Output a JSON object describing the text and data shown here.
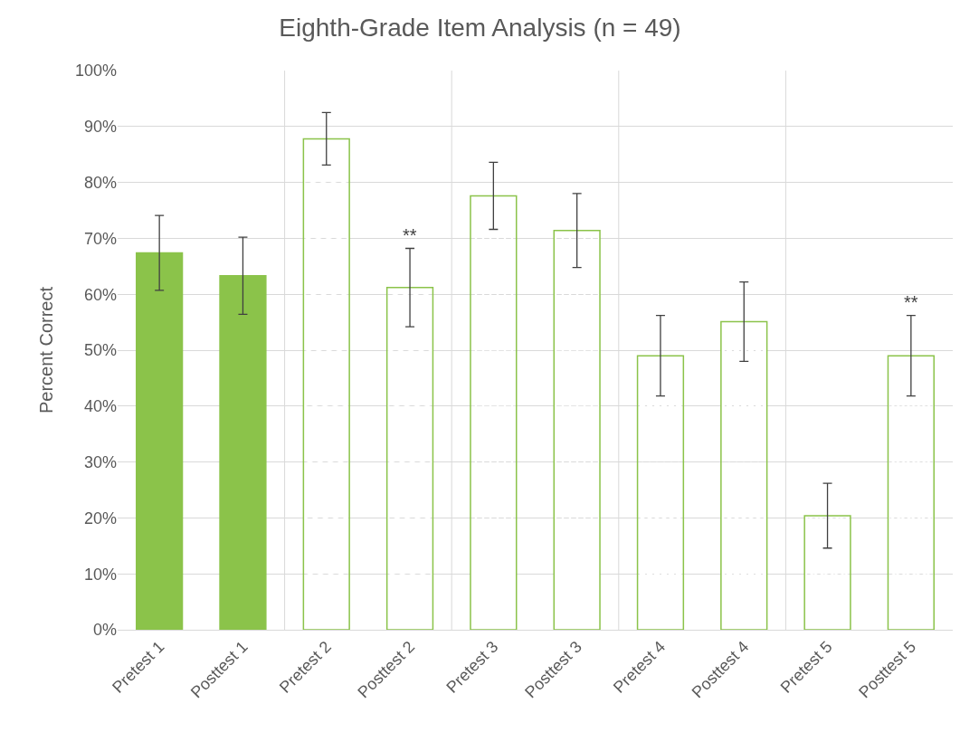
{
  "chart_data": {
    "type": "bar",
    "title": "Eighth-Grade Item Analysis (n = 49)",
    "ylabel": "Percent Correct",
    "categories": [
      "Pretest 1",
      "Posttest 1",
      "Pretest 2",
      "Posttest 2",
      "Pretest 3",
      "Posttest 3",
      "Pretest 4",
      "Posttest 4",
      "Pretest 5",
      "Posttest 5"
    ],
    "values": [
      67.4,
      63.3,
      87.8,
      61.2,
      77.6,
      71.4,
      49.0,
      55.1,
      20.4,
      49.0
    ],
    "errors": [
      6.7,
      6.9,
      4.7,
      7.0,
      6.0,
      6.6,
      7.2,
      7.1,
      5.8,
      7.2
    ],
    "colors": [
      "#8bc34a",
      "#8bc34a",
      "#8bc34a",
      "#8bc34a",
      "#8bc34a",
      "#8bc34a",
      "#8bc34a",
      "#8bc34a",
      "#8bc34a",
      "#8bc34a"
    ],
    "annotations": [
      {
        "text": "**",
        "x": "Posttest 2",
        "y": 61.2
      },
      {
        "text": "**",
        "x": "Posttest 5",
        "y": 49.0
      }
    ],
    "ylim": [
      0,
      100
    ],
    "yticks": [
      {
        "value": 0,
        "label": "0%"
      },
      {
        "value": 10,
        "label": "10%"
      },
      {
        "value": 20,
        "label": "20%"
      },
      {
        "value": 30,
        "label": "30%"
      },
      {
        "value": 40,
        "label": "40%"
      },
      {
        "value": 50,
        "label": "50%"
      },
      {
        "value": 60,
        "label": "60%"
      },
      {
        "value": 70,
        "label": "70%"
      },
      {
        "value": 80,
        "label": "80%"
      },
      {
        "value": 90,
        "label": "90%"
      },
      {
        "value": 100,
        "label": "100%"
      }
    ],
    "grid": true
  }
}
